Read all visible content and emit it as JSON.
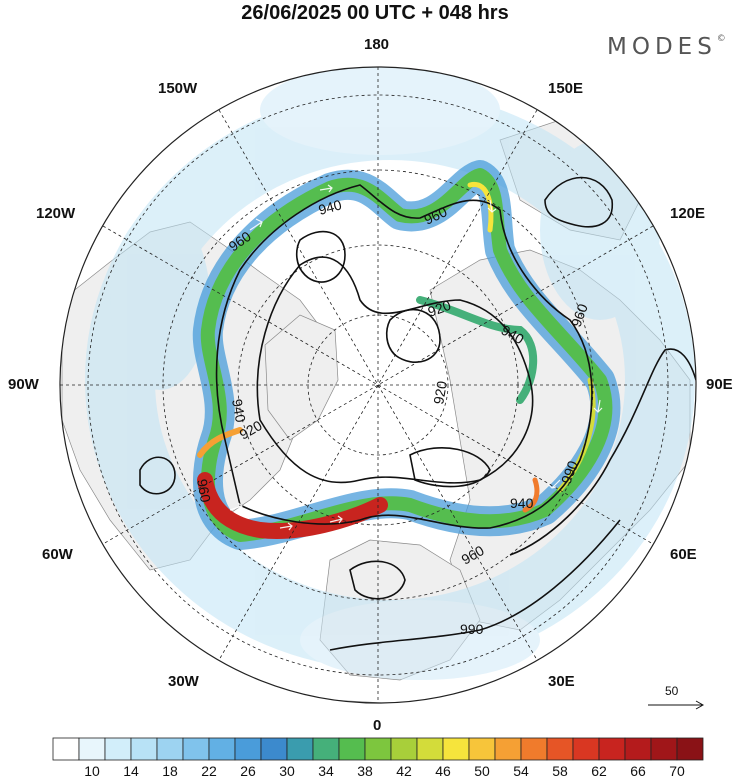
{
  "title": "26/06/2025  00 UTC  + 048 hrs",
  "brand": {
    "name": "MODES",
    "mark": "©"
  },
  "longitude_labels": {
    "lon_180": "180",
    "lon_150w": "150W",
    "lon_150e": "150E",
    "lon_120w": "120W",
    "lon_120e": "120E",
    "lon_90w": "90W",
    "lon_90e": "90E",
    "lon_60w": "60W",
    "lon_60e": "60E",
    "lon_30w": "30W",
    "lon_30e": "30E",
    "lon_0": "0"
  },
  "contour_labels": [
    "940",
    "960",
    "960",
    "920",
    "940",
    "960",
    "940",
    "920",
    "920",
    "960",
    "940",
    "960",
    "990",
    "990"
  ],
  "vector_reference": {
    "value": "50"
  },
  "colorbar": {
    "ticks": [
      "10",
      "14",
      "18",
      "22",
      "26",
      "30",
      "34",
      "38",
      "42",
      "46",
      "50",
      "54",
      "58",
      "62",
      "66",
      "70"
    ],
    "colors": [
      "#ffffff",
      "#e8f6fc",
      "#d2eefa",
      "#b8e2f6",
      "#9dd3f1",
      "#80c3ec",
      "#62b0e4",
      "#4a9cda",
      "#3c8acd",
      "#3a9cae",
      "#45b07a",
      "#55bd4f",
      "#7dc63e",
      "#a8cf3a",
      "#d3dc3a",
      "#f6e43c",
      "#f7c53a",
      "#f5a034",
      "#f07b2c",
      "#e65526",
      "#d93722",
      "#c8241f",
      "#b41b1c",
      "#a01619",
      "#8a1216"
    ]
  },
  "colors": {
    "land": "#efefef",
    "ocean": "#ffffff",
    "contour": "#111111"
  }
}
